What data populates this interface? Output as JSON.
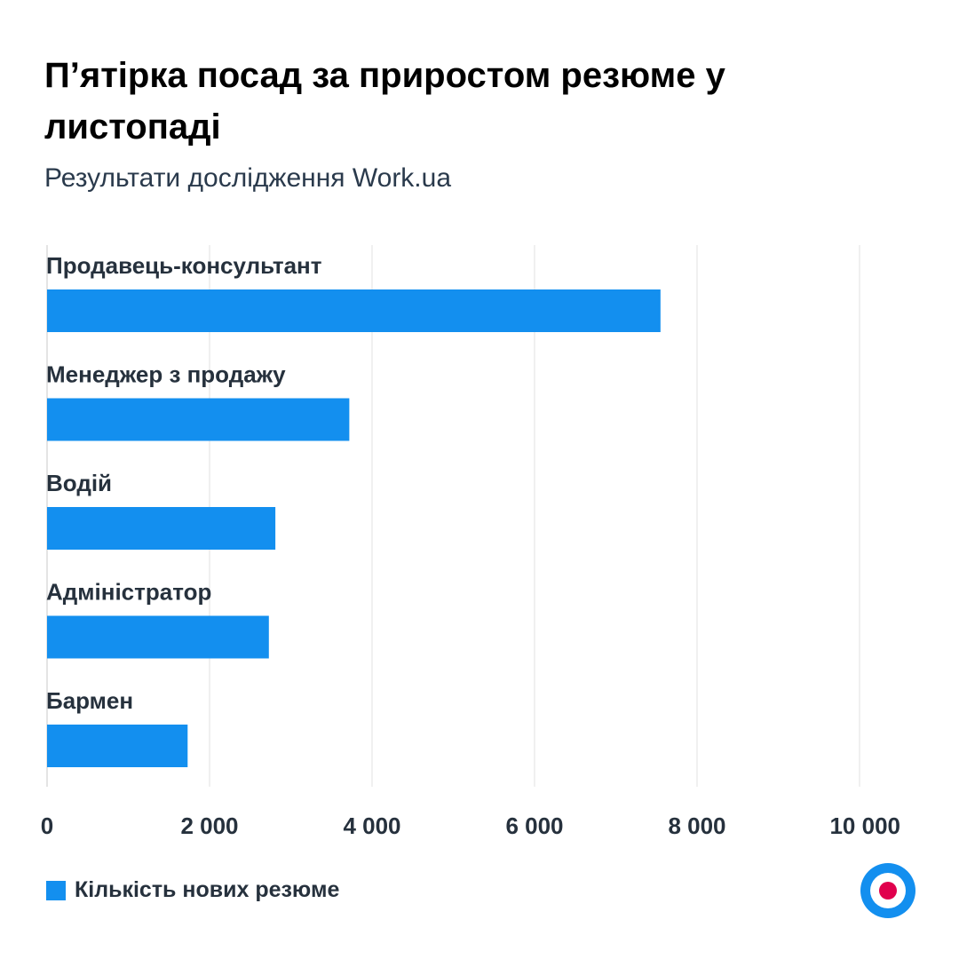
{
  "title": "П’ятірка посад за приростом резюме у листопаді",
  "subtitle": "Результати дослідження Work.ua",
  "colors": {
    "bar": "#138fef",
    "grid": "#ececec",
    "logo_ring": "#138fef",
    "logo_dot": "#e0004d"
  },
  "legend": {
    "label": "Кількість нових резюме"
  },
  "logo_icon": "work-ua-logo-icon",
  "chart_data": {
    "type": "bar",
    "orientation": "horizontal",
    "categories": [
      "Продавець-консультант",
      "Менеджер з продажу",
      "Водій",
      "Адміністратор",
      "Бармен"
    ],
    "series": [
      {
        "name": "Кількість нових резюме",
        "values": [
          7550,
          3720,
          2810,
          2730,
          1730
        ]
      }
    ],
    "xlim": [
      0,
      10000
    ],
    "xticks": [
      0,
      2000,
      4000,
      6000,
      8000,
      10000
    ],
    "xtick_labels": [
      "0",
      "2 000",
      "4 000",
      "6 000",
      "8 000",
      "10 000"
    ],
    "grid": true,
    "legend_position": "bottom-left"
  }
}
